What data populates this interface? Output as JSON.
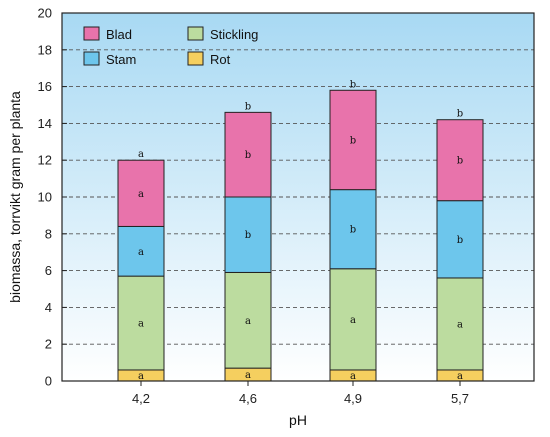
{
  "chart_data": {
    "type": "bar",
    "stacked": true,
    "categories": [
      "4,2",
      "4,6",
      "4,9",
      "5,7"
    ],
    "xlabel": "pH",
    "ylabel": "biomassa, torrvikt gram per planta",
    "ylim": [
      0,
      20
    ],
    "yticks": [
      0,
      2,
      4,
      6,
      8,
      10,
      12,
      14,
      16,
      18,
      20
    ],
    "grid": true,
    "legend_position": "top-left",
    "series": [
      {
        "name": "Rot",
        "color": "#f5cf5f",
        "values": [
          0.6,
          0.7,
          0.6,
          0.6
        ],
        "labels": [
          "a",
          "a",
          "a",
          "a"
        ]
      },
      {
        "name": "Stickling",
        "color": "#bcdc9f",
        "values": [
          5.1,
          5.2,
          5.5,
          5.0
        ],
        "labels": [
          "a",
          "a",
          "a",
          "a"
        ]
      },
      {
        "name": "Stam",
        "color": "#6dc6ec",
        "values": [
          2.7,
          4.1,
          4.3,
          4.2
        ],
        "labels": [
          "a",
          "b",
          "b",
          "b"
        ]
      },
      {
        "name": "Blad",
        "color": "#e873ab",
        "values": [
          3.6,
          4.6,
          5.4,
          4.4
        ],
        "labels": [
          "a",
          "b",
          "b",
          "b"
        ]
      }
    ],
    "top_labels": [
      "a",
      "b",
      "b",
      "b"
    ],
    "legend_order": [
      "Blad",
      "Stickling",
      "Stam",
      "Rot"
    ]
  }
}
